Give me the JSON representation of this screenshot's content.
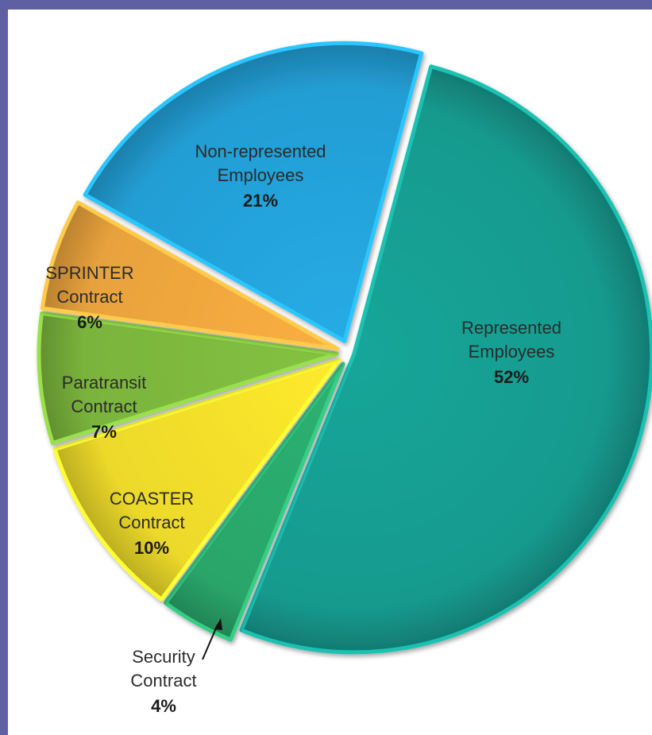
{
  "chart_data": {
    "type": "pie",
    "title": "",
    "legend": "none",
    "slices": [
      {
        "label_lines": [
          "Represented",
          "Employees"
        ],
        "pct_label": "52%",
        "value": 52,
        "color": "#159a8e"
      },
      {
        "label_lines": [
          "Security",
          "Contract"
        ],
        "pct_label": "4%",
        "value": 4,
        "color": "#2aa56a"
      },
      {
        "label_lines": [
          "COASTER",
          "Contract"
        ],
        "pct_label": "10%",
        "value": 10,
        "color": "#ecd92a"
      },
      {
        "label_lines": [
          "Paratransit",
          "Contract"
        ],
        "pct_label": "7%",
        "value": 7,
        "color": "#7ab43c"
      },
      {
        "label_lines": [
          "SPRINTER",
          "Contract"
        ],
        "pct_label": "6%",
        "value": 6,
        "color": "#e8a23c"
      },
      {
        "label_lines": [
          "Non-represented",
          "Employees"
        ],
        "pct_label": "21%",
        "value": 21,
        "color": "#239ed4"
      }
    ]
  }
}
